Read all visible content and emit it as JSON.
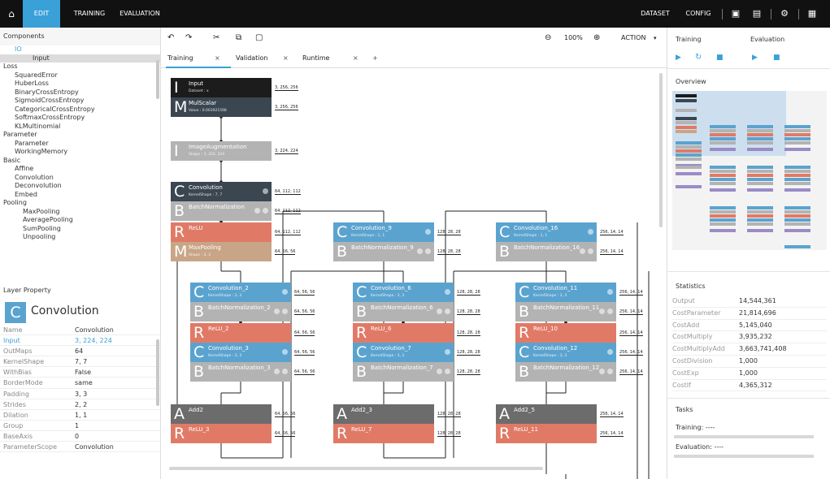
{
  "topbar": {
    "tabs": [
      {
        "label": "EDIT"
      },
      {
        "label": "TRAINING"
      },
      {
        "label": "EVALUATION"
      }
    ],
    "dataset_label": "DATASET",
    "config_label": "CONFIG",
    "active_tab_color": "#3aa0d8"
  },
  "components": {
    "title": "Components",
    "items": [
      {
        "label": "IO",
        "kind": "io"
      },
      {
        "label": "Input",
        "kind": "io-l2"
      },
      {
        "label": "Loss",
        "kind": "cat"
      },
      {
        "label": "SquaredError",
        "kind": "sub"
      },
      {
        "label": "HuberLoss",
        "kind": "sub"
      },
      {
        "label": "BinaryCrossEntropy",
        "kind": "sub"
      },
      {
        "label": "SigmoidCrossEntropy",
        "kind": "sub"
      },
      {
        "label": "CategoricalCrossEntropy",
        "kind": "sub"
      },
      {
        "label": "SoftmaxCrossEntropy",
        "kind": "sub"
      },
      {
        "label": "KLMultinomial",
        "kind": "sub"
      },
      {
        "label": "Parameter",
        "kind": "cat"
      },
      {
        "label": "Parameter",
        "kind": "sub"
      },
      {
        "label": "WorkingMemory",
        "kind": "sub"
      },
      {
        "label": "Basic",
        "kind": "cat"
      },
      {
        "label": "Affine",
        "kind": "sub"
      },
      {
        "label": "Convolution",
        "kind": "sub"
      },
      {
        "label": "Deconvolution",
        "kind": "sub"
      },
      {
        "label": "Embed",
        "kind": "sub"
      },
      {
        "label": "Pooling",
        "kind": "cat"
      },
      {
        "label": "MaxPooling",
        "kind": "l2"
      },
      {
        "label": "AveragePooling",
        "kind": "l2"
      },
      {
        "label": "SumPooling",
        "kind": "l2"
      },
      {
        "label": "Unpooling",
        "kind": "l2"
      }
    ]
  },
  "layer_property": {
    "title": "Layer Property",
    "tile_letter": "C",
    "layer_type": "Convolution",
    "rows": [
      {
        "key": "Name",
        "value": "Convolution"
      },
      {
        "key": "Input",
        "value": "3, 224, 224",
        "highlight": true
      },
      {
        "key": "OutMaps",
        "value": "64"
      },
      {
        "key": "KernelShape",
        "value": "7, 7"
      },
      {
        "key": "WithBias",
        "value": "False"
      },
      {
        "key": "BorderMode",
        "value": "same"
      },
      {
        "key": "Padding",
        "value": "3, 3"
      },
      {
        "key": "Strides",
        "value": "2, 2"
      },
      {
        "key": "Dilation",
        "value": "1, 1"
      },
      {
        "key": "Group",
        "value": "1"
      },
      {
        "key": "BaseAxis",
        "value": "0"
      },
      {
        "key": "ParameterScope",
        "value": "Convolution"
      }
    ]
  },
  "toolbar": {
    "zoom": "100%",
    "action_label": "ACTION"
  },
  "tabs": [
    {
      "label": "Training",
      "active": true
    },
    {
      "label": "Validation"
    },
    {
      "label": "Runtime"
    }
  ],
  "tab_close": "×",
  "tab_add": "+",
  "graph": {
    "nodes": [
      {
        "id": "input",
        "letter": "I",
        "name": "Input",
        "sub": "Dataset : x",
        "color": "#1c1c1c",
        "dim": "3, 256, 256"
      },
      {
        "id": "mulscalar",
        "letter": "M",
        "name": "MulScalar",
        "sub": "Value : 0.003921568",
        "color": "#3a4650",
        "dim": "3, 256, 256"
      },
      {
        "id": "imgaug",
        "letter": "I",
        "name": "ImageAugmentation",
        "sub": "Shape : 3, 224, 224",
        "color": "#b3b3b3",
        "dim": "3, 224, 224"
      },
      {
        "id": "conv",
        "letter": "C",
        "name": "Convolution",
        "sub": "KernelShape : 7, 7",
        "color": "#3a4650",
        "dim": "64, 112, 112"
      },
      {
        "id": "bn",
        "letter": "B",
        "name": "BatchNormalization",
        "sub": "",
        "color": "#b3b3b3",
        "dim": "64, 112, 112"
      },
      {
        "id": "relu",
        "letter": "R",
        "name": "ReLU",
        "sub": "",
        "color": "#e07a66",
        "dim": "64, 112, 112"
      },
      {
        "id": "maxpool",
        "letter": "M",
        "name": "MaxPooling",
        "sub": "Shape : 3, 3",
        "color": "#c8a586",
        "dim": "64, 56, 56"
      },
      {
        "id": "conv2",
        "letter": "C",
        "name": "Convolution_2",
        "sub": "KernelShape : 3, 3",
        "color": "#5ba3cf",
        "dim": "64, 56, 56"
      },
      {
        "id": "bn2",
        "letter": "B",
        "name": "BatchNormalization_2",
        "sub": "",
        "color": "#b3b3b3",
        "dim": "64, 56, 56"
      },
      {
        "id": "relu2",
        "letter": "R",
        "name": "ReLU_2",
        "sub": "",
        "color": "#e07a66",
        "dim": "64, 56, 56"
      },
      {
        "id": "conv3",
        "letter": "C",
        "name": "Convolution_3",
        "sub": "KernelShape : 3, 3",
        "color": "#5ba3cf",
        "dim": "64, 56, 56"
      },
      {
        "id": "bn3",
        "letter": "B",
        "name": "BatchNormalization_3",
        "sub": "",
        "color": "#b3b3b3",
        "dim": "64, 56, 56"
      },
      {
        "id": "add2",
        "letter": "A",
        "name": "Add2",
        "sub": "",
        "color": "#6c6c6c",
        "dim": "64, 56, 56"
      },
      {
        "id": "relu3",
        "letter": "R",
        "name": "ReLU_3",
        "sub": "",
        "color": "#e07a66",
        "dim": "64, 56, 56"
      },
      {
        "id": "conv9",
        "letter": "C",
        "name": "Convolution_9",
        "sub": "KernelShape : 1, 1",
        "color": "#5ba3cf",
        "dim": "128, 28, 28"
      },
      {
        "id": "bn9",
        "letter": "B",
        "name": "BatchNormalization_9",
        "sub": "",
        "color": "#b3b3b3",
        "dim": "128, 28, 28"
      },
      {
        "id": "conv6",
        "letter": "C",
        "name": "Convolution_6",
        "sub": "KernelShape : 3, 3",
        "color": "#5ba3cf",
        "dim": "128, 28, 28"
      },
      {
        "id": "bn6",
        "letter": "B",
        "name": "BatchNormalization_6",
        "sub": "",
        "color": "#b3b3b3",
        "dim": "128, 28, 28"
      },
      {
        "id": "relu6",
        "letter": "R",
        "name": "ReLU_6",
        "sub": "",
        "color": "#e07a66",
        "dim": "128, 28, 28"
      },
      {
        "id": "conv7",
        "letter": "C",
        "name": "Convolution_7",
        "sub": "KernelShape : 3, 3",
        "color": "#5ba3cf",
        "dim": "128, 28, 28"
      },
      {
        "id": "bn7",
        "letter": "B",
        "name": "BatchNormalization_7",
        "sub": "",
        "color": "#b3b3b3",
        "dim": "128, 28, 28"
      },
      {
        "id": "add23",
        "letter": "A",
        "name": "Add2_3",
        "sub": "",
        "color": "#6c6c6c",
        "dim": "128, 28, 28"
      },
      {
        "id": "relu7",
        "letter": "R",
        "name": "ReLU_7",
        "sub": "",
        "color": "#e07a66",
        "dim": "128, 28, 28"
      },
      {
        "id": "conv16",
        "letter": "C",
        "name": "Convolution_16",
        "sub": "KernelShape : 1, 1",
        "color": "#5ba3cf",
        "dim": "256, 14, 14"
      },
      {
        "id": "bn16",
        "letter": "B",
        "name": "BatchNormalization_16",
        "sub": "",
        "color": "#b3b3b3",
        "dim": "256, 14, 14"
      },
      {
        "id": "conv11",
        "letter": "C",
        "name": "Convolution_11",
        "sub": "KernelShape : 3, 3",
        "color": "#5ba3cf",
        "dim": "256, 14, 14"
      },
      {
        "id": "bn11",
        "letter": "B",
        "name": "BatchNormalization_11",
        "sub": "",
        "color": "#b3b3b3",
        "dim": "256, 14, 14"
      },
      {
        "id": "relu10",
        "letter": "R",
        "name": "ReLU_10",
        "sub": "",
        "color": "#e07a66",
        "dim": "256, 14, 14"
      },
      {
        "id": "conv12",
        "letter": "C",
        "name": "Convolution_12",
        "sub": "KernelShape : 3, 3",
        "color": "#5ba3cf",
        "dim": "256, 14, 14"
      },
      {
        "id": "bn12",
        "letter": "B",
        "name": "BatchNormalization_12",
        "sub": "",
        "color": "#b3b3b3",
        "dim": "256, 14, 14"
      },
      {
        "id": "add25",
        "letter": "A",
        "name": "Add2_5",
        "sub": "",
        "color": "#6c6c6c",
        "dim": "256, 14, 14"
      },
      {
        "id": "relu11",
        "letter": "R",
        "name": "ReLU_11",
        "sub": "",
        "color": "#e07a66",
        "dim": "256, 14, 14"
      }
    ]
  },
  "right": {
    "training_label": "Training",
    "evaluation_label": "Evaluation",
    "overview_title": "Overview",
    "statistics_title": "Statistics",
    "stats": [
      {
        "key": "Output",
        "value": "14,544,361"
      },
      {
        "key": "CostParameter",
        "value": "21,814,696"
      },
      {
        "key": "CostAdd",
        "value": "5,145,040"
      },
      {
        "key": "CostMultiply",
        "value": "3,935,232"
      },
      {
        "key": "CostMultiplyAdd",
        "value": "3,663,741,408"
      },
      {
        "key": "CostDivision",
        "value": "1,000"
      },
      {
        "key": "CostExp",
        "value": "1,000"
      },
      {
        "key": "CostIf",
        "value": "4,365,312"
      }
    ],
    "tasks_title": "Tasks",
    "task_training": "Training:  ----",
    "task_evaluation": "Evaluation:  ----"
  }
}
